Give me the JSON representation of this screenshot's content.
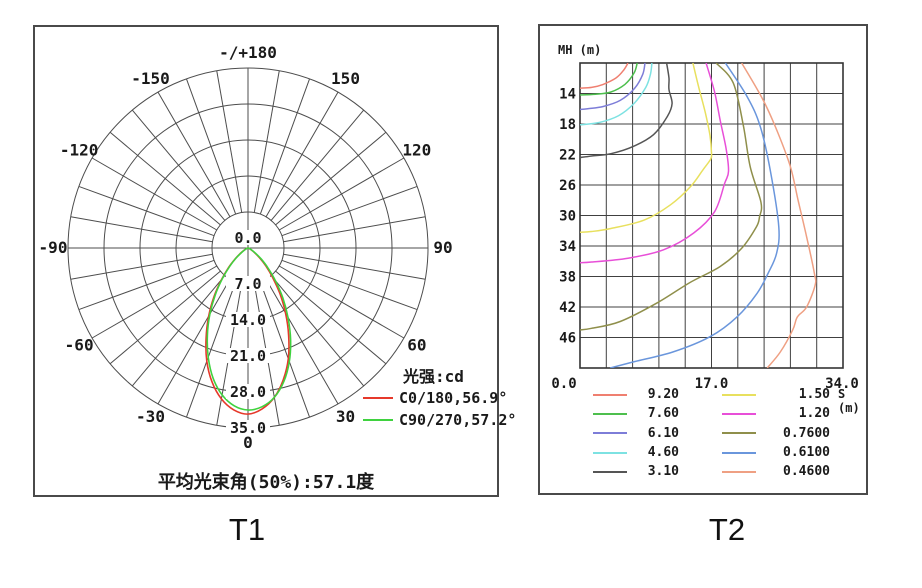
{
  "fig_labels": [
    "T1",
    "T2"
  ],
  "colors": {
    "grid_line": "#4d4d4d",
    "frame": "#4a4a4a",
    "text": "#1a1a1a",
    "c0_red": "#e6392b",
    "c90_green": "#3fd23f"
  },
  "chart_data": [
    {
      "type": "polar",
      "legend_title": "光强:cd",
      "caption": "平均光束角(50%):57.1度",
      "unit": "cd",
      "ring_values": [
        "0.0",
        "7.0",
        "14.0",
        "21.0",
        "28.0",
        "35.0"
      ],
      "ring_max": 35,
      "angle_step_deg": 10,
      "angle_labels": [
        {
          "label": "0",
          "angle": 0
        },
        {
          "label": "30",
          "angle": 30
        },
        {
          "label": "60",
          "angle": 60
        },
        {
          "label": "90",
          "angle": 90
        },
        {
          "label": "120",
          "angle": 120
        },
        {
          "label": "150",
          "angle": 150
        },
        {
          "label": "-/+180",
          "angle": 180
        },
        {
          "label": "-150",
          "angle": -150
        },
        {
          "label": "-120",
          "angle": -120
        },
        {
          "label": "-90",
          "angle": -90
        },
        {
          "label": "-60",
          "angle": -60
        },
        {
          "label": "-30",
          "angle": -30
        }
      ],
      "series": [
        {
          "name": "C0/180,56.9°",
          "color": "#e6392b",
          "points": [
            [
              -90,
              0
            ],
            [
              -80,
              0.1
            ],
            [
              -70,
              0.3
            ],
            [
              -60,
              0.9
            ],
            [
              -55,
              1.7
            ],
            [
              -50,
              3.2
            ],
            [
              -45,
              5.3
            ],
            [
              -40,
              8.0
            ],
            [
              -35,
              11.5
            ],
            [
              -30,
              15.3
            ],
            [
              -25,
              19.3
            ],
            [
              -20,
              23.4
            ],
            [
              -15,
              27.0
            ],
            [
              -10,
              29.8
            ],
            [
              -5,
              31.6
            ],
            [
              0,
              32.3
            ],
            [
              5,
              31.4
            ],
            [
              10,
              29.5
            ],
            [
              15,
              26.5
            ],
            [
              20,
              22.9
            ],
            [
              25,
              18.7
            ],
            [
              30,
              14.6
            ],
            [
              35,
              10.8
            ],
            [
              40,
              7.4
            ],
            [
              45,
              4.9
            ],
            [
              50,
              2.9
            ],
            [
              55,
              1.5
            ],
            [
              60,
              0.7
            ],
            [
              70,
              0.2
            ],
            [
              80,
              0.05
            ],
            [
              90,
              0
            ]
          ]
        },
        {
          "name": "C90/270,57.2°",
          "color": "#3fd23f",
          "points": [
            [
              -90,
              0
            ],
            [
              -80,
              0.05
            ],
            [
              -70,
              0.25
            ],
            [
              -60,
              0.8
            ],
            [
              -55,
              1.5
            ],
            [
              -50,
              3.0
            ],
            [
              -45,
              5.0
            ],
            [
              -40,
              7.7
            ],
            [
              -35,
              11.1
            ],
            [
              -30,
              14.8
            ],
            [
              -25,
              18.7
            ],
            [
              -20,
              22.6
            ],
            [
              -15,
              26.2
            ],
            [
              -10,
              29.0
            ],
            [
              -5,
              30.8
            ],
            [
              0,
              31.5
            ],
            [
              5,
              31.0
            ],
            [
              10,
              29.5
            ],
            [
              15,
              26.9
            ],
            [
              20,
              23.5
            ],
            [
              25,
              19.6
            ],
            [
              30,
              15.5
            ],
            [
              35,
              11.8
            ],
            [
              40,
              8.3
            ],
            [
              45,
              5.5
            ],
            [
              50,
              3.4
            ],
            [
              55,
              1.8
            ],
            [
              60,
              0.9
            ],
            [
              70,
              0.3
            ],
            [
              80,
              0.05
            ],
            [
              90,
              0
            ]
          ]
        }
      ]
    },
    {
      "type": "contour",
      "ylabel": "MH (m)",
      "xlabel": "S (m)",
      "xlim": [
        0,
        34
      ],
      "ylim": [
        10,
        50
      ],
      "x_ticks": [
        {
          "label": "0.0",
          "value": 0
        },
        {
          "label": "17.0",
          "value": 17
        },
        {
          "label": "34.0",
          "value": 34
        }
      ],
      "y_ticks": [
        {
          "label": "14",
          "value": 14
        },
        {
          "label": "18",
          "value": 18
        },
        {
          "label": "22",
          "value": 22
        },
        {
          "label": "26",
          "value": 26
        },
        {
          "label": "30",
          "value": 30
        },
        {
          "label": "34",
          "value": 34
        },
        {
          "label": "38",
          "value": 38
        },
        {
          "label": "42",
          "value": 42
        },
        {
          "label": "46",
          "value": 46
        }
      ],
      "grid_cols": 10,
      "grid_rows": 10,
      "series": [
        {
          "label": "9.20",
          "color": "#ef7f70",
          "points": [
            [
              6.2,
              10
            ],
            [
              5.6,
              11
            ],
            [
              4.6,
              12
            ],
            [
              3,
              12.8
            ],
            [
              1.5,
              13.2
            ],
            [
              0,
              13.3
            ]
          ]
        },
        {
          "label": "7.60",
          "color": "#4dbf4d",
          "points": [
            [
              7.4,
              10
            ],
            [
              7,
              11.3
            ],
            [
              5.8,
              12.8
            ],
            [
              4,
              13.8
            ],
            [
              2,
              14.1
            ],
            [
              0,
              14.2
            ]
          ]
        },
        {
          "label": "6.10",
          "color": "#7d7dd8",
          "points": [
            [
              8.4,
              10
            ],
            [
              8.1,
              11.5
            ],
            [
              7,
              13.4
            ],
            [
              5.2,
              14.9
            ],
            [
              3,
              15.7
            ],
            [
              1,
              16
            ],
            [
              0,
              16.1
            ]
          ]
        },
        {
          "label": "4.60",
          "color": "#7de2e2",
          "points": [
            [
              9.3,
              10
            ],
            [
              9.1,
              11.5
            ],
            [
              8.5,
              13.2
            ],
            [
              7,
              15.3
            ],
            [
              5,
              16.9
            ],
            [
              2.5,
              17.8
            ],
            [
              0,
              18.1
            ]
          ]
        },
        {
          "label": "3.10",
          "color": "#555555",
          "points": [
            [
              11.2,
              10
            ],
            [
              11.5,
              12
            ],
            [
              11.5,
              13.5
            ],
            [
              11.9,
              15.3
            ],
            [
              11.3,
              17
            ],
            [
              9.5,
              19.4
            ],
            [
              7,
              20.9
            ],
            [
              4,
              21.9
            ],
            [
              1.5,
              22.2
            ],
            [
              0,
              22.4
            ]
          ]
        },
        {
          "label": "1.50",
          "color": "#e8e05e",
          "points": [
            [
              14.6,
              10
            ],
            [
              15.3,
              13
            ],
            [
              16.2,
              16.5
            ],
            [
              16.8,
              19.5
            ],
            [
              17,
              21.8
            ],
            [
              16.9,
              22.6
            ],
            [
              15.9,
              24
            ],
            [
              14.3,
              26.2
            ],
            [
              11.7,
              28.6
            ],
            [
              8.3,
              30.6
            ],
            [
              4,
              31.7
            ],
            [
              1.5,
              32.1
            ],
            [
              0,
              32.2
            ]
          ]
        },
        {
          "label": "1.20",
          "color": "#e84fd8",
          "points": [
            [
              16.3,
              10
            ],
            [
              17.4,
              13.8
            ],
            [
              18.1,
              17.4
            ],
            [
              18.9,
              21.3
            ],
            [
              19.2,
              24.2
            ],
            [
              18.7,
              25.8
            ],
            [
              17.4,
              29.5
            ],
            [
              14.7,
              32.3
            ],
            [
              10.8,
              34.5
            ],
            [
              6.2,
              35.6
            ],
            [
              1.5,
              36.1
            ],
            [
              0,
              36.2
            ]
          ]
        },
        {
          "label": "0.7600",
          "color": "#8f8f4b",
          "points": [
            [
              17.6,
              10
            ],
            [
              19.8,
              12.6
            ],
            [
              21.1,
              18.1
            ],
            [
              22,
              23.6
            ],
            [
              23.4,
              28.3
            ],
            [
              23.2,
              30.2
            ],
            [
              22.8,
              31.5
            ],
            [
              20.9,
              34.3
            ],
            [
              18.1,
              36.7
            ],
            [
              14.2,
              38.8
            ],
            [
              9.9,
              41.5
            ],
            [
              5.2,
              43.9
            ],
            [
              1.5,
              44.8
            ],
            [
              0,
              45
            ]
          ]
        },
        {
          "label": "0.6100",
          "color": "#6a96dc",
          "points": [
            [
              18.8,
              10
            ],
            [
              21.6,
              14.4
            ],
            [
              23.3,
              18.3
            ],
            [
              24.6,
              24.1
            ],
            [
              25.7,
              31.5
            ],
            [
              25.4,
              35
            ],
            [
              24.3,
              37.6
            ],
            [
              22.9,
              40.2
            ],
            [
              20.3,
              43.3
            ],
            [
              16.8,
              45.9
            ],
            [
              12,
              47.9
            ],
            [
              6.9,
              49.2
            ],
            [
              3.9,
              50
            ]
          ]
        },
        {
          "label": "0.4600",
          "color": "#efa083",
          "points": [
            [
              20.9,
              10
            ],
            [
              23.7,
              14.9
            ],
            [
              25.6,
              19.2
            ],
            [
              27.2,
              23.6
            ],
            [
              28.2,
              28
            ],
            [
              29.3,
              32.8
            ],
            [
              30.3,
              37.6
            ],
            [
              30.4,
              39.1
            ],
            [
              29.3,
              42
            ],
            [
              28.1,
              43.3
            ],
            [
              27.5,
              45
            ],
            [
              25.9,
              47.9
            ],
            [
              24.2,
              50
            ]
          ]
        }
      ],
      "legend_columns": {
        "left": [
          {
            "label": "9.20",
            "color": "#ef7f70"
          },
          {
            "label": "7.60",
            "color": "#4dbf4d"
          },
          {
            "label": "6.10",
            "color": "#7d7dd8"
          },
          {
            "label": "4.60",
            "color": "#7de2e2"
          },
          {
            "label": "3.10",
            "color": "#555555"
          }
        ],
        "right": [
          {
            "label": "1.50",
            "color": "#e8e05e"
          },
          {
            "label": "1.20",
            "color": "#e84fd8"
          },
          {
            "label": "0.7600",
            "color": "#8f8f4b"
          },
          {
            "label": "0.6100",
            "color": "#6a96dc"
          },
          {
            "label": "0.4600",
            "color": "#efa083"
          }
        ]
      }
    }
  ]
}
